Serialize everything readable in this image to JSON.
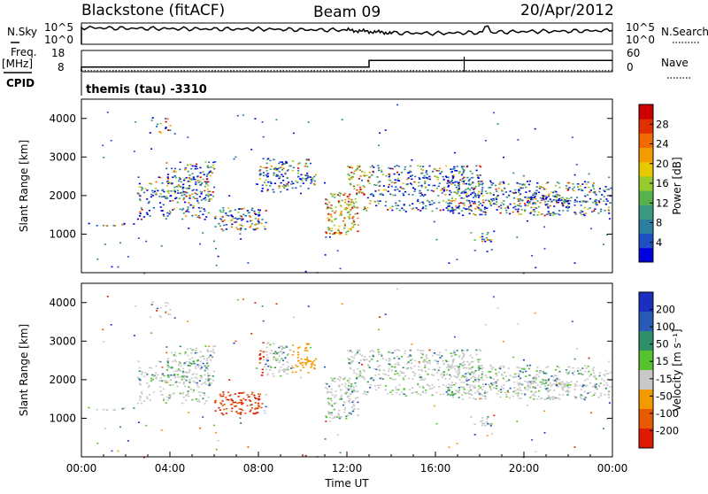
{
  "header": {
    "station": "Blackstone (fitACF)",
    "beam": "Beam 09",
    "date": "20/Apr/2012"
  },
  "chart_data": [
    {
      "type": "line",
      "name": "noise-panel",
      "left_label": "N.Sky",
      "right_label": "N.Search",
      "left_ticks": [
        "10^5",
        "10^0"
      ],
      "right_ticks": [
        "10^5",
        "10^0"
      ],
      "series": [
        {
          "name": "N.Sky",
          "x": [
            "00:00",
            "02:00",
            "04:00",
            "06:00",
            "08:00",
            "10:00",
            "12:00",
            "13:00",
            "14:00",
            "16:00",
            "18:00",
            "20:00",
            "22:00",
            "24:00"
          ],
          "y_log": [
            4.2,
            4.0,
            3.9,
            3.8,
            3.8,
            3.6,
            3.5,
            3.1,
            2.7,
            2.6,
            2.8,
            3.1,
            3.2,
            3.4
          ]
        }
      ]
    },
    {
      "type": "line",
      "name": "freq-panel",
      "left_label": "Freq.",
      "left_unit": "[MHz]",
      "right_label": "Nave",
      "left_ticks": [
        18,
        8
      ],
      "right_ticks": [
        60,
        0
      ],
      "series": [
        {
          "name": "Freq.",
          "x": [
            "00:00",
            "13:00",
            "24:00"
          ],
          "y": [
            10.2,
            13.3,
            13.3
          ]
        },
        {
          "name": "Nave",
          "x": [
            "00:00",
            "24:00"
          ],
          "y": [
            3,
            3
          ]
        }
      ]
    },
    {
      "type": "table",
      "name": "cpid",
      "label": "CPID",
      "value": "themis (tau) -3310"
    },
    {
      "type": "heatmap",
      "name": "power-panel",
      "ylabel": "Slant Range [km]",
      "yticks": [
        1000,
        2000,
        3000,
        4000
      ],
      "ylim": [
        0,
        4500
      ],
      "xlim_hours": [
        0,
        24
      ],
      "colorbar": {
        "label": "Power [dB]",
        "ticks": [
          4,
          8,
          12,
          16,
          20,
          24,
          28
        ],
        "colors": [
          "#0000dd",
          "#1e4fc4",
          "#2b7fa0",
          "#3c9a84",
          "#58b24c",
          "#96cc2e",
          "#e8c800",
          "#f59a00",
          "#f06a00",
          "#e03000",
          "#cc0000"
        ]
      }
    },
    {
      "type": "heatmap",
      "name": "velocity-panel",
      "ylabel": "Slant Range [km]",
      "yticks": [
        1000,
        2000,
        3000,
        4000
      ],
      "ylim": [
        0,
        4500
      ],
      "xlabel": "Time UT",
      "xticks": [
        "00:00",
        "04:00",
        "08:00",
        "12:00",
        "16:00",
        "20:00",
        "00:00"
      ],
      "colorbar": {
        "label": "Velocity [m s⁻¹]",
        "ticks": [
          "200",
          "100",
          "50",
          "15",
          "-15",
          "-50",
          "-100",
          "-200"
        ],
        "colors": [
          "#1a2fbf",
          "#2a5ab8",
          "#2f8f6a",
          "#56c22e",
          "#c8c8c8",
          "#f29a00",
          "#e85a00",
          "#e01a00"
        ]
      }
    }
  ]
}
